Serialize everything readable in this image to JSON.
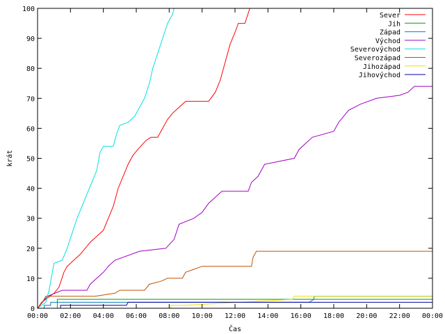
{
  "chart_data": {
    "type": "line",
    "xlabel": "Čas",
    "ylabel": "krát",
    "xlim": [
      0,
      24
    ],
    "ylim": [
      0,
      100
    ],
    "x_ticks": [
      0,
      2,
      4,
      6,
      8,
      10,
      12,
      14,
      16,
      18,
      20,
      22,
      24
    ],
    "x_tick_labels": [
      "00:00",
      "02:00",
      "04:00",
      "06:00",
      "08:00",
      "10:00",
      "12:00",
      "14:00",
      "16:00",
      "18:00",
      "20:00",
      "22:00",
      "00:00"
    ],
    "y_ticks": [
      0,
      10,
      20,
      30,
      40,
      50,
      60,
      70,
      80,
      90,
      100
    ],
    "y_tick_labels": [
      "0",
      "10",
      "20",
      "30",
      "40",
      "50",
      "60",
      "70",
      "80",
      "90",
      "100"
    ],
    "legend_position": "top-right",
    "grid": false,
    "series": [
      {
        "name": "Sever",
        "color": "#ff0000",
        "points": [
          [
            0,
            0
          ],
          [
            0.25,
            2
          ],
          [
            0.5,
            3
          ],
          [
            1.0,
            5
          ],
          [
            1.3,
            7
          ],
          [
            1.6,
            12
          ],
          [
            1.8,
            14
          ],
          [
            2.2,
            16
          ],
          [
            2.6,
            18
          ],
          [
            2.9,
            20
          ],
          [
            3.2,
            22
          ],
          [
            3.6,
            24
          ],
          [
            4.0,
            26
          ],
          [
            4.3,
            30
          ],
          [
            4.6,
            34
          ],
          [
            4.9,
            40
          ],
          [
            5.2,
            44
          ],
          [
            5.5,
            48
          ],
          [
            5.8,
            51
          ],
          [
            6.1,
            53
          ],
          [
            6.6,
            56
          ],
          [
            6.9,
            57
          ],
          [
            7.3,
            57
          ],
          [
            7.6,
            60
          ],
          [
            7.9,
            63
          ],
          [
            8.2,
            65
          ],
          [
            8.6,
            67
          ],
          [
            9.0,
            69
          ],
          [
            9.6,
            69
          ],
          [
            10.4,
            69
          ],
          [
            10.8,
            72
          ],
          [
            11.1,
            76
          ],
          [
            11.4,
            82
          ],
          [
            11.7,
            88
          ],
          [
            12.0,
            92
          ],
          [
            12.2,
            95
          ],
          [
            12.6,
            95
          ],
          [
            12.9,
            100
          ],
          [
            13.0,
            100
          ]
        ]
      },
      {
        "name": "Jih",
        "color": "#00a000",
        "points": [
          [
            0,
            0
          ],
          [
            1.2,
            0
          ],
          [
            1.2,
            3
          ],
          [
            24,
            3
          ]
        ]
      },
      {
        "name": "Západ",
        "color": "#0080c0",
        "points": [
          [
            0,
            0
          ],
          [
            0.4,
            0
          ],
          [
            0.4,
            1
          ],
          [
            0.8,
            1
          ],
          [
            0.8,
            2
          ],
          [
            10,
            2
          ],
          [
            16.5,
            2
          ],
          [
            16.8,
            3
          ],
          [
            16.8,
            4
          ],
          [
            24,
            4
          ]
        ]
      },
      {
        "name": "Východ",
        "color": "#a000c0",
        "points": [
          [
            0,
            0
          ],
          [
            0.3,
            2
          ],
          [
            0.6,
            4
          ],
          [
            1.5,
            6
          ],
          [
            3.0,
            6
          ],
          [
            3.2,
            8
          ],
          [
            3.6,
            10
          ],
          [
            4.0,
            12
          ],
          [
            4.3,
            14
          ],
          [
            4.7,
            16
          ],
          [
            6.2,
            19
          ],
          [
            7.8,
            20
          ],
          [
            8.3,
            23
          ],
          [
            8.6,
            28
          ],
          [
            9.5,
            30
          ],
          [
            10.0,
            32
          ],
          [
            10.4,
            35
          ],
          [
            10.8,
            37
          ],
          [
            11.2,
            39
          ],
          [
            12.8,
            39
          ],
          [
            13.0,
            42
          ],
          [
            13.4,
            44
          ],
          [
            13.8,
            48
          ],
          [
            15.6,
            50
          ],
          [
            15.9,
            53
          ],
          [
            16.3,
            55
          ],
          [
            16.7,
            57
          ],
          [
            18.0,
            59
          ],
          [
            18.3,
            62
          ],
          [
            18.6,
            64
          ],
          [
            18.9,
            66
          ],
          [
            19.6,
            68
          ],
          [
            20.6,
            70
          ],
          [
            22.0,
            71
          ],
          [
            22.5,
            72
          ],
          [
            22.9,
            74
          ],
          [
            24,
            74
          ]
        ]
      },
      {
        "name": "Severovýchod",
        "color": "#00e0e0",
        "points": [
          [
            0,
            0
          ],
          [
            0.5,
            2
          ],
          [
            0.7,
            6
          ],
          [
            0.9,
            12
          ],
          [
            1.0,
            15
          ],
          [
            1.5,
            16
          ],
          [
            1.8,
            20
          ],
          [
            2.1,
            25
          ],
          [
            2.4,
            30
          ],
          [
            2.7,
            34
          ],
          [
            3.0,
            38
          ],
          [
            3.3,
            42
          ],
          [
            3.6,
            46
          ],
          [
            3.8,
            52
          ],
          [
            4.0,
            54
          ],
          [
            4.6,
            54
          ],
          [
            4.8,
            58
          ],
          [
            5.0,
            61
          ],
          [
            5.5,
            62
          ],
          [
            5.9,
            64
          ],
          [
            6.2,
            67
          ],
          [
            6.5,
            70
          ],
          [
            6.8,
            75
          ],
          [
            7.0,
            80
          ],
          [
            7.3,
            85
          ],
          [
            7.6,
            90
          ],
          [
            7.9,
            95
          ],
          [
            8.2,
            98
          ],
          [
            8.3,
            100
          ]
        ]
      },
      {
        "name": "Severozápad",
        "color": "#c05000",
        "points": [
          [
            0,
            0
          ],
          [
            0.3,
            2
          ],
          [
            0.5,
            4
          ],
          [
            1.5,
            4
          ],
          [
            2.2,
            4
          ],
          [
            3.5,
            4
          ],
          [
            4.7,
            5
          ],
          [
            5.0,
            6
          ],
          [
            6.5,
            6
          ],
          [
            6.8,
            8
          ],
          [
            7.5,
            9
          ],
          [
            7.9,
            10
          ],
          [
            8.8,
            10
          ],
          [
            9.0,
            12
          ],
          [
            9.5,
            13
          ],
          [
            10.0,
            14
          ],
          [
            13.0,
            14
          ],
          [
            13.1,
            17
          ],
          [
            13.3,
            19
          ],
          [
            24,
            19
          ]
        ]
      },
      {
        "name": "Jihozápad",
        "color": "#f0e000",
        "points": [
          [
            0,
            0
          ],
          [
            8.1,
            0
          ],
          [
            8.1,
            1
          ],
          [
            9.0,
            1
          ],
          [
            15.5,
            3
          ],
          [
            15.6,
            4
          ],
          [
            24,
            4
          ]
        ]
      },
      {
        "name": "Jihovýchod",
        "color": "#0000a0",
        "points": [
          [
            0,
            0
          ],
          [
            1.4,
            0
          ],
          [
            1.4,
            1
          ],
          [
            5.4,
            1
          ],
          [
            5.5,
            2
          ],
          [
            16.5,
            2
          ],
          [
            16.8,
            2
          ],
          [
            24,
            2
          ]
        ]
      }
    ]
  }
}
